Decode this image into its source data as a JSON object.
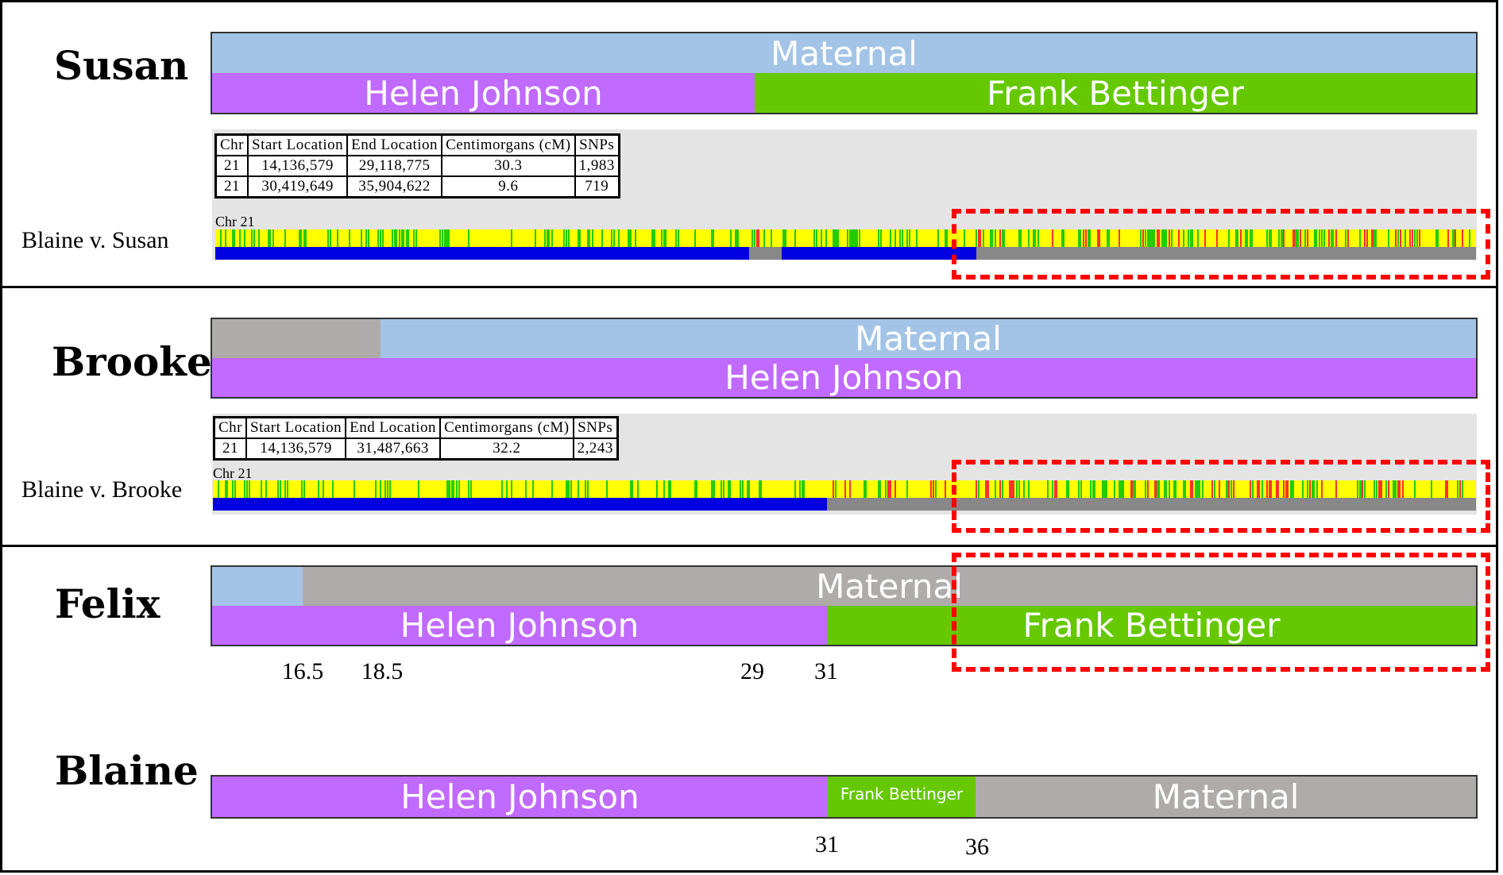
{
  "colors": {
    "maternal": "#a3c4e6",
    "helen": "#c06aff",
    "frank": "#65c800",
    "gray": "#b0abab",
    "match_blue": "#0000e0",
    "nomatch_gray": "#888888",
    "highlight": "#ff0000"
  },
  "labels": {
    "maternal": "Maternal",
    "helen": "Helen Johnson",
    "frank": "Frank Bettinger",
    "chr": "Chr 21"
  },
  "table_headers": [
    "Chr",
    "Start Location",
    "End Location",
    "Centimorgans (cM)",
    "SNPs"
  ],
  "susan": {
    "name": "Susan",
    "comparison": "Blaine v. Susan",
    "rows": [
      [
        "21",
        "14,136,579",
        "29,118,775",
        "30.3",
        "1,983"
      ],
      [
        "21",
        "30,419,649",
        "35,904,622",
        "9.6",
        "719"
      ]
    ]
  },
  "brooke": {
    "name": "Brooke",
    "comparison": "Blaine v. Brooke",
    "rows": [
      [
        "21",
        "14,136,579",
        "31,487,663",
        "32.2",
        "2,243"
      ]
    ]
  },
  "felix": {
    "name": "Felix",
    "ticks": [
      "16.5",
      "18.5",
      "29",
      "31"
    ]
  },
  "blaine": {
    "name": "Blaine",
    "ticks": [
      "31",
      "36"
    ]
  }
}
